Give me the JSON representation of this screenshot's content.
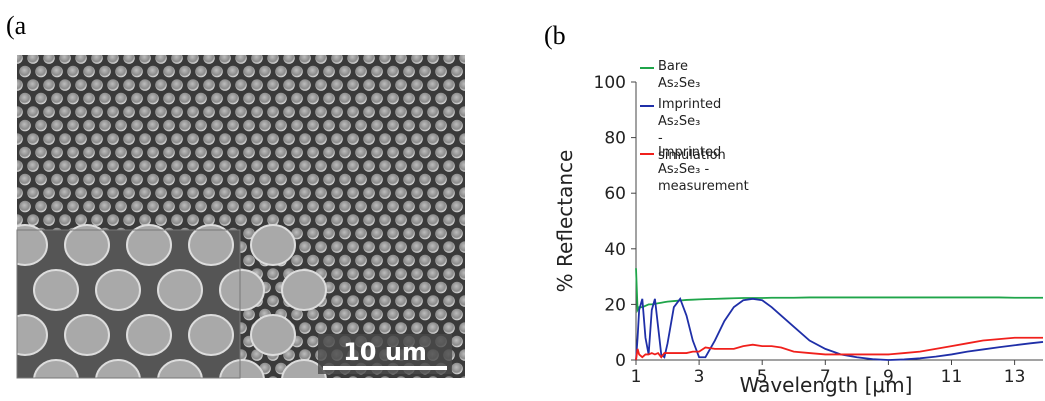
{
  "panels": {
    "a_label": "(a",
    "b_label": "(b",
    "scale_bar": "10 um"
  },
  "chart_data": {
    "type": "line",
    "xlabel": "Wavelength [μm]",
    "ylabel": "% Reflectance",
    "xlim": [
      1,
      13.9
    ],
    "ylim": [
      0,
      100
    ],
    "xticks": [
      1,
      3,
      5,
      7,
      9,
      11,
      13
    ],
    "yticks": [
      0,
      20,
      40,
      60,
      80,
      100
    ],
    "x": [
      1,
      1.05,
      1.1,
      1.2,
      1.3,
      1.4,
      1.5,
      1.6,
      1.7,
      1.8,
      1.9,
      2.0,
      2.2,
      2.4,
      2.6,
      2.8,
      3.0,
      3.2,
      3.5,
      3.8,
      4.1,
      4.4,
      4.7,
      5.0,
      5.3,
      5.6,
      6.0,
      6.5,
      7,
      7.5,
      8,
      8.5,
      9,
      9.5,
      10,
      10.5,
      11,
      11.5,
      12,
      12.5,
      13,
      13.5,
      13.9
    ],
    "series": [
      {
        "name": "Bare As₂Se₃",
        "color": "#1fa54a",
        "values": [
          33,
          18,
          19,
          19,
          19.5,
          20,
          20,
          20.2,
          20.4,
          20.6,
          20.8,
          21,
          21.2,
          21.4,
          21.6,
          21.7,
          21.8,
          21.9,
          22,
          22.1,
          22.2,
          22.3,
          22.3,
          22.3,
          22.4,
          22.4,
          22.4,
          22.5,
          22.5,
          22.5,
          22.5,
          22.5,
          22.5,
          22.5,
          22.5,
          22.5,
          22.5,
          22.5,
          22.5,
          22.5,
          22.4,
          22.4,
          22.4
        ]
      },
      {
        "name": "Imprinted As₂Se₃\n- simulation",
        "color": "#1f2fa8",
        "values": [
          0,
          8,
          18,
          22,
          8,
          2,
          18,
          22,
          12,
          2,
          1,
          6,
          19,
          22,
          16,
          7,
          1,
          1,
          7,
          14,
          19,
          21.5,
          22,
          21.5,
          19,
          16,
          12,
          7,
          4,
          2,
          1,
          0.3,
          0,
          0.2,
          0.6,
          1.2,
          2,
          3,
          3.8,
          4.6,
          5.3,
          6,
          6.5
        ]
      },
      {
        "name": "Imprinted As₂Se₃ -\nmeasurement",
        "color": "#f0201c",
        "values": [
          0,
          4,
          2,
          1,
          2,
          2,
          2.5,
          2,
          2.5,
          1,
          2.5,
          2.5,
          2.5,
          2.5,
          2.5,
          3,
          3,
          4.5,
          4,
          4,
          4,
          5,
          5.5,
          5,
          5,
          4.5,
          3,
          2.5,
          2,
          2,
          2,
          2,
          2,
          2.5,
          3,
          4,
          5,
          6,
          7,
          7.5,
          8,
          8,
          8
        ]
      }
    ]
  }
}
